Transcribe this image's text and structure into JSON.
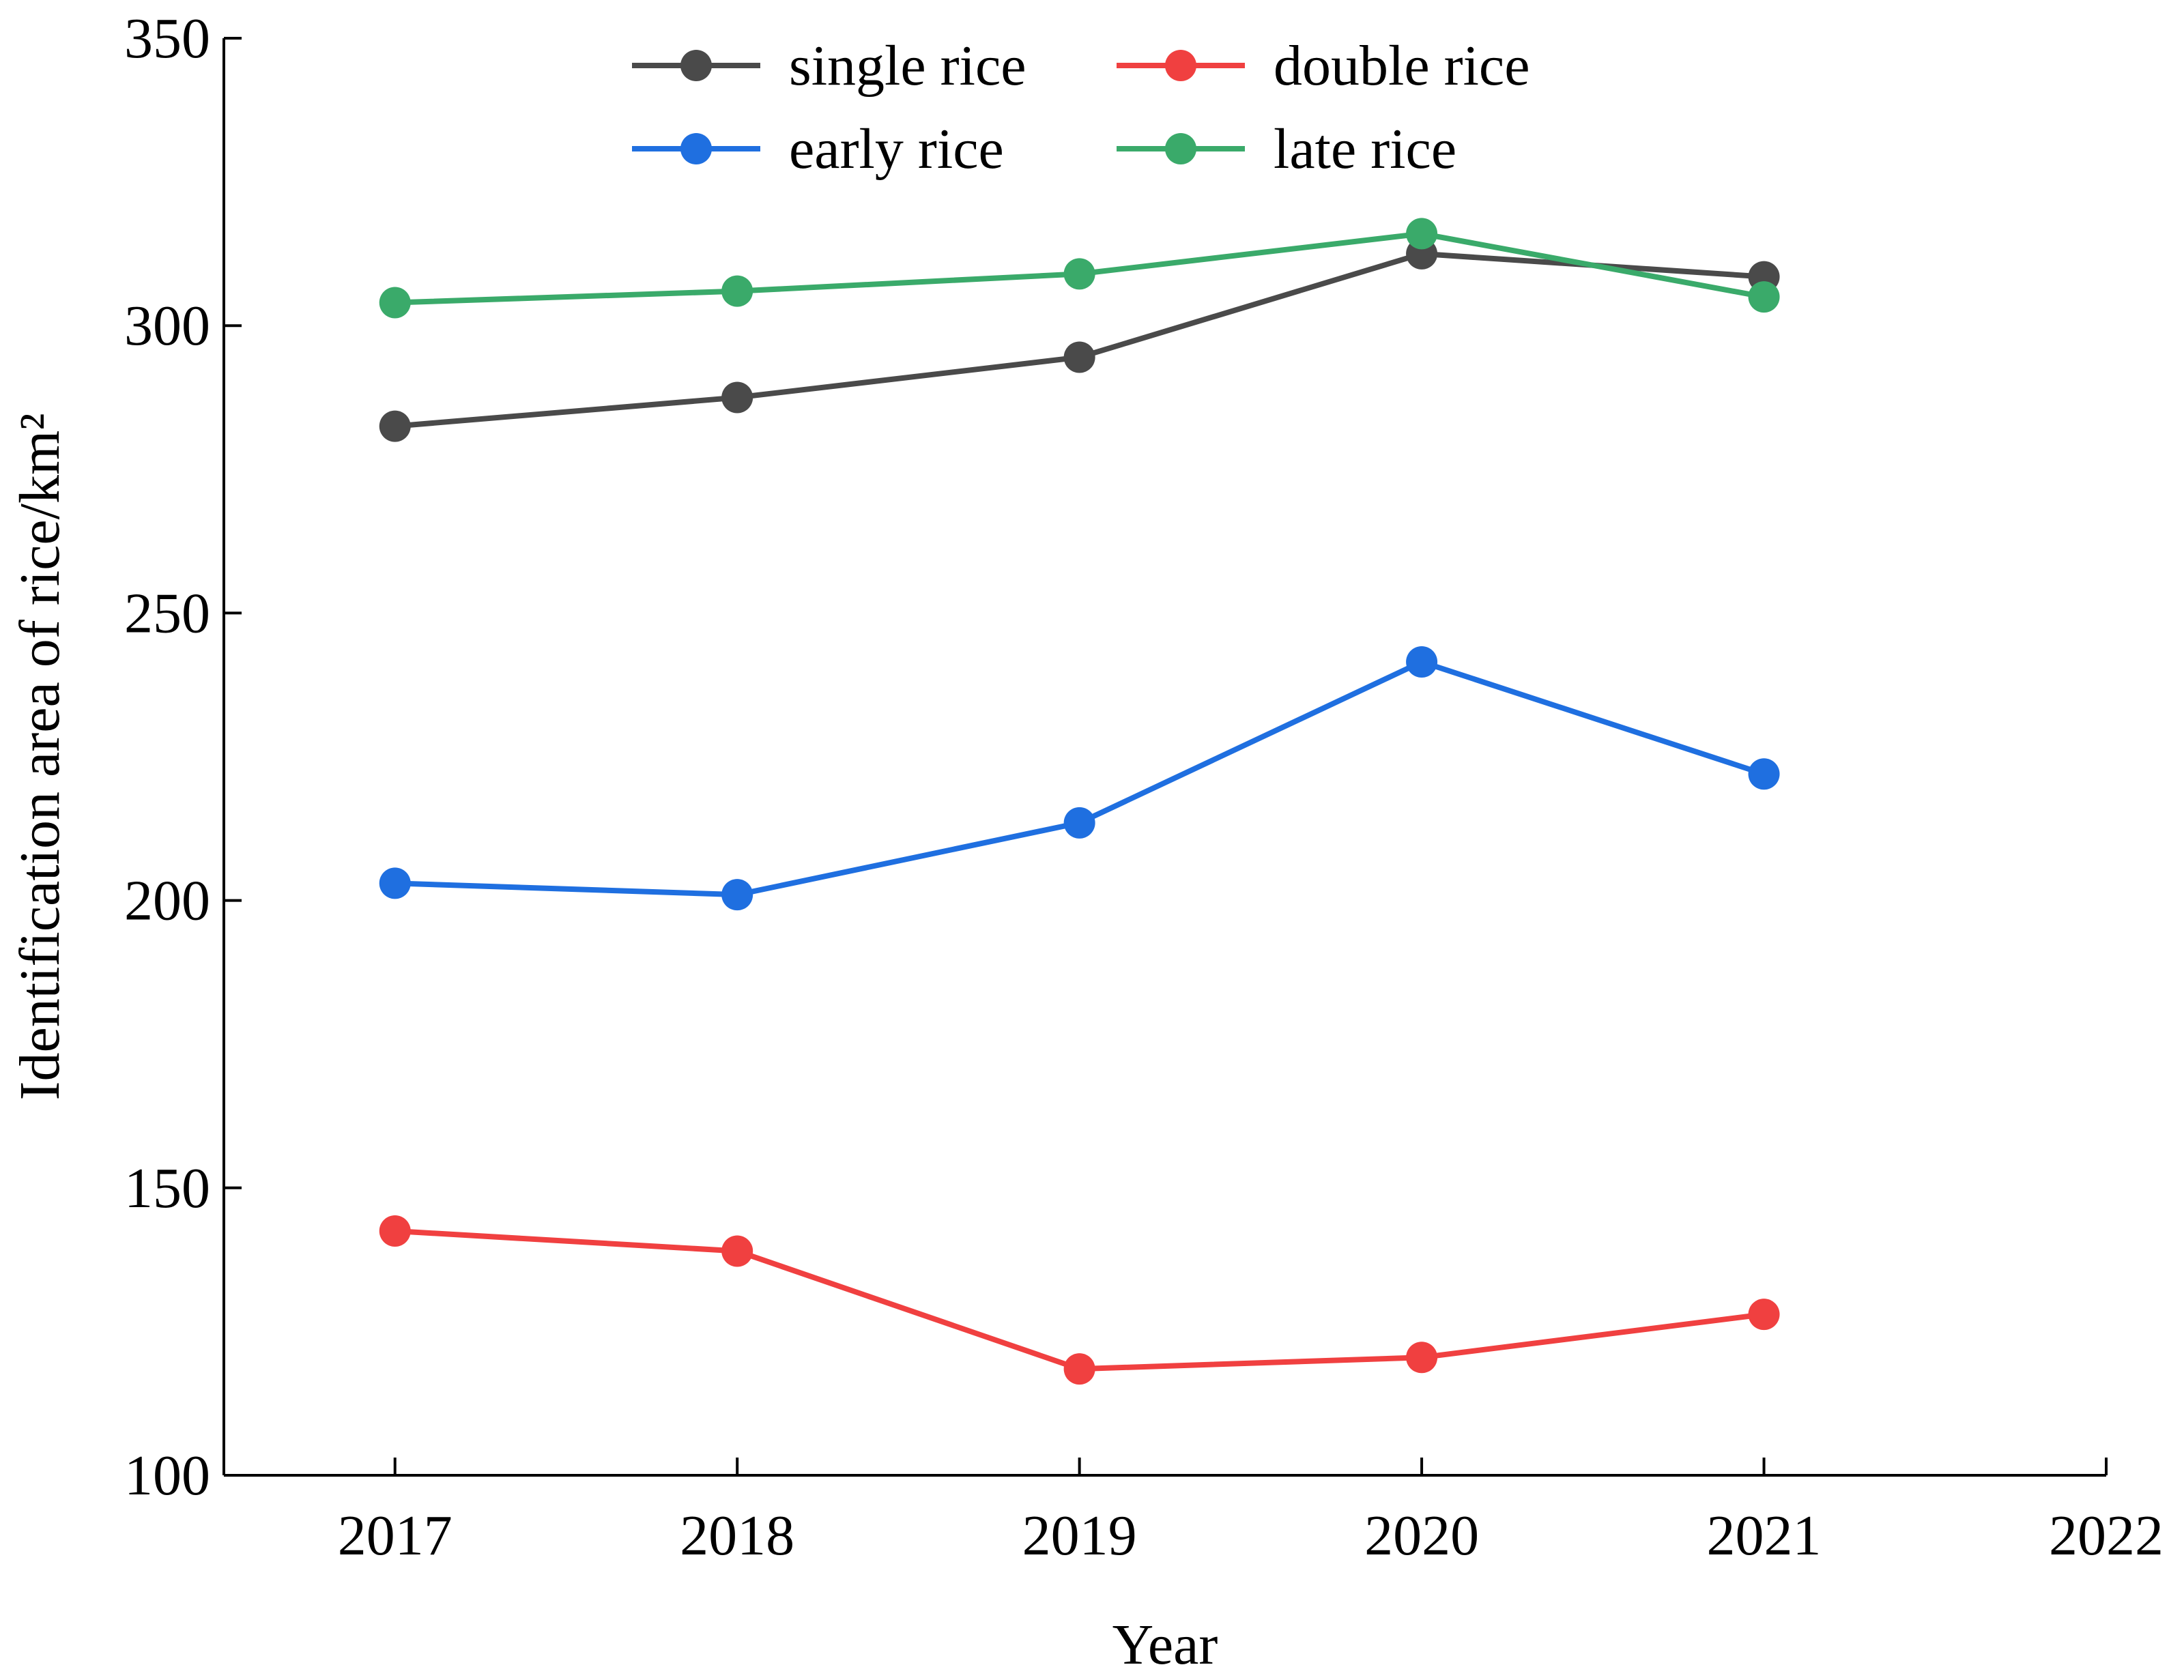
{
  "chart_data": {
    "type": "line",
    "title": "",
    "xlabel": "Year",
    "ylabel": "Identification area of rice/km²",
    "x": [
      2017,
      2018,
      2019,
      2020,
      2021
    ],
    "xticks": [
      "2017",
      "2018",
      "2019",
      "2020",
      "2021",
      "2022"
    ],
    "xlim": [
      2016.5,
      2022
    ],
    "yticks": [
      "100",
      "150",
      "200",
      "250",
      "300",
      "350"
    ],
    "ylim": [
      100,
      350
    ],
    "grid": false,
    "legend_position": "top-center",
    "series": [
      {
        "name": "single rice",
        "color": "#4a4a4a",
        "values": [
          282.5,
          287.5,
          294.5,
          312.5,
          308.5
        ]
      },
      {
        "name": "double rice",
        "color": "#f04040",
        "values": [
          142.5,
          139,
          118.5,
          120.5,
          128
        ]
      },
      {
        "name": "early rice",
        "color": "#1f6fe0",
        "values": [
          203,
          201,
          213.5,
          241.5,
          222
        ]
      },
      {
        "name": "late rice",
        "color": "#3aaa6a",
        "values": [
          304,
          306,
          309,
          316,
          305
        ]
      }
    ]
  }
}
